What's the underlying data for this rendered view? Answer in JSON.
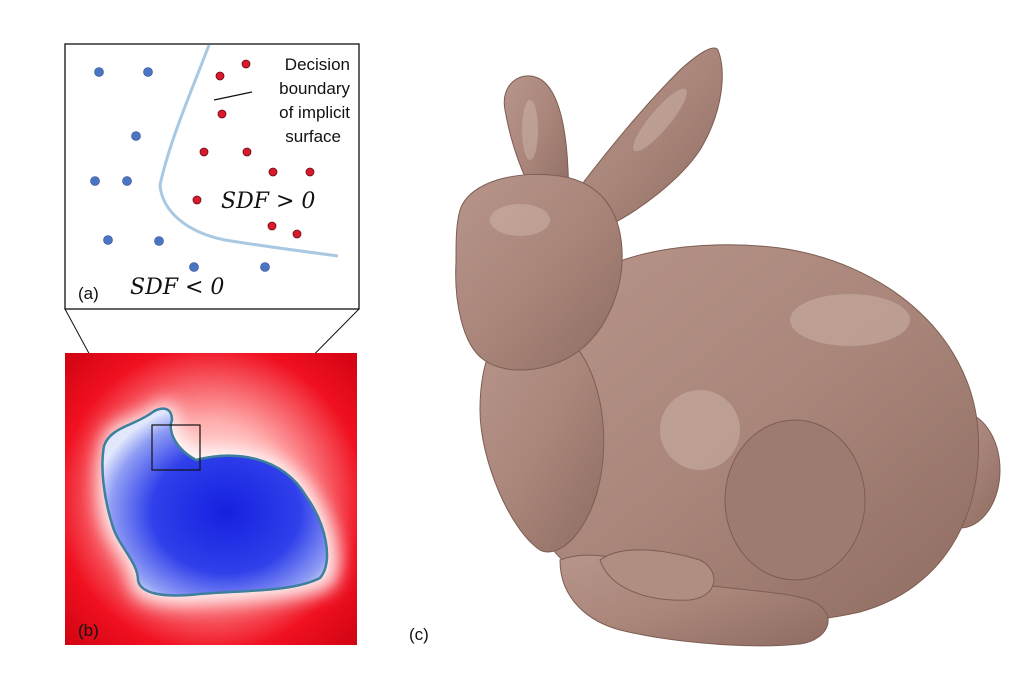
{
  "panel_a": {
    "label": "(a)",
    "annotation_lines": [
      "Decision",
      "boundary",
      "of implicit",
      "surface"
    ],
    "sdf_positive": "SDF > 0",
    "sdf_negative": "SDF < 0"
  },
  "panel_b": {
    "label": "(b)"
  },
  "panel_c": {
    "label": "(c)"
  },
  "colors": {
    "inside_point": "#4a74c4",
    "outside_point": "#d9192c",
    "boundary_line": "#a9c8e2",
    "sdf_outside": "#e2001a",
    "sdf_inside": "#1a2ee0",
    "contour": "#3d7f9c",
    "bunny": "#a9857a"
  }
}
